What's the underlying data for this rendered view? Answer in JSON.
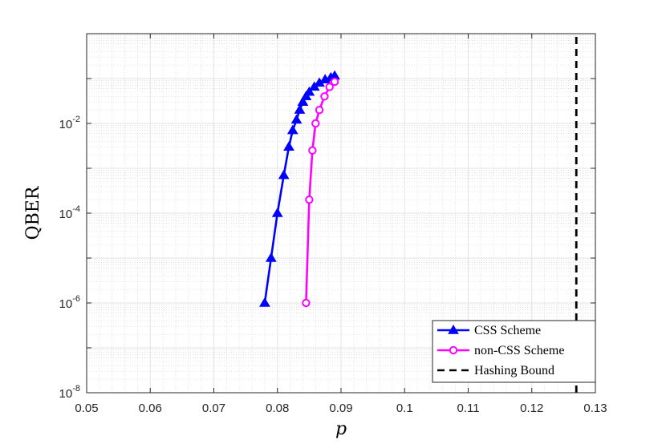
{
  "chart_data": {
    "type": "line",
    "xlabel": "p",
    "ylabel": "QBER",
    "xlim": [
      0.05,
      0.13
    ],
    "ylim": [
      1e-08,
      1
    ],
    "yscale": "log",
    "grid": "major and minor, dotted",
    "legend_position": "bottom-right",
    "x_ticks": [
      "0.05",
      "0.06",
      "0.07",
      "0.08",
      "0.09",
      "0.1",
      "0.11",
      "0.12",
      "0.13"
    ],
    "y_ticks": [
      {
        "base": "10",
        "exp": "-8"
      },
      {
        "base": "10",
        "exp": "-6"
      },
      {
        "base": "10",
        "exp": "-4"
      },
      {
        "base": "10",
        "exp": "-2"
      }
    ],
    "series": [
      {
        "name": "CSS Scheme",
        "color": "#0000ff",
        "marker": "triangle",
        "x": [
          0.078,
          0.079,
          0.08,
          0.081,
          0.0818,
          0.0824,
          0.083,
          0.0835,
          0.084,
          0.0845,
          0.085,
          0.0858,
          0.0866,
          0.0875,
          0.0884,
          0.089
        ],
        "y": [
          1e-06,
          1e-05,
          0.0001,
          0.0007,
          0.003,
          0.007,
          0.012,
          0.02,
          0.03,
          0.04,
          0.05,
          0.065,
          0.08,
          0.095,
          0.105,
          0.115
        ]
      },
      {
        "name": "non-CSS Scheme",
        "color": "#ff00ff",
        "marker": "circle",
        "x": [
          0.0845,
          0.085,
          0.0855,
          0.086,
          0.0866,
          0.0874,
          0.0882,
          0.089
        ],
        "y": [
          1e-06,
          0.0002,
          0.0025,
          0.01,
          0.02,
          0.04,
          0.065,
          0.085
        ]
      },
      {
        "name": "Hashing Bound",
        "color": "#000000",
        "style": "dashed",
        "x": [
          0.127,
          0.127
        ],
        "y": [
          1e-08,
          1
        ]
      }
    ]
  }
}
